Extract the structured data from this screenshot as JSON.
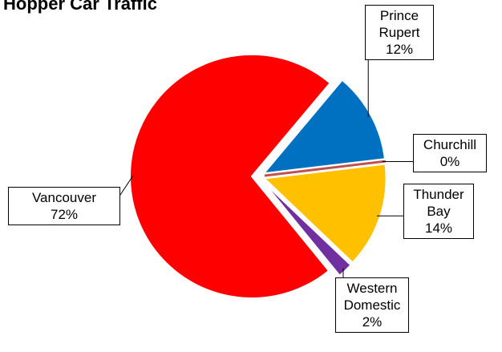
{
  "chart_data": {
    "type": "pie",
    "title": "Hopper Car Traffic",
    "categories": [
      "Prince Rupert",
      "Churchill",
      "Thunder Bay",
      "Western Domestic",
      "Vancouver"
    ],
    "values": [
      12,
      0,
      14,
      2,
      72
    ],
    "value_labels": [
      "12%",
      "0%",
      "14%",
      "2%",
      "72%"
    ],
    "colors": [
      "#0070c0",
      "#c0504d",
      "#ffc000",
      "#7030a0",
      "#ff0000"
    ]
  }
}
